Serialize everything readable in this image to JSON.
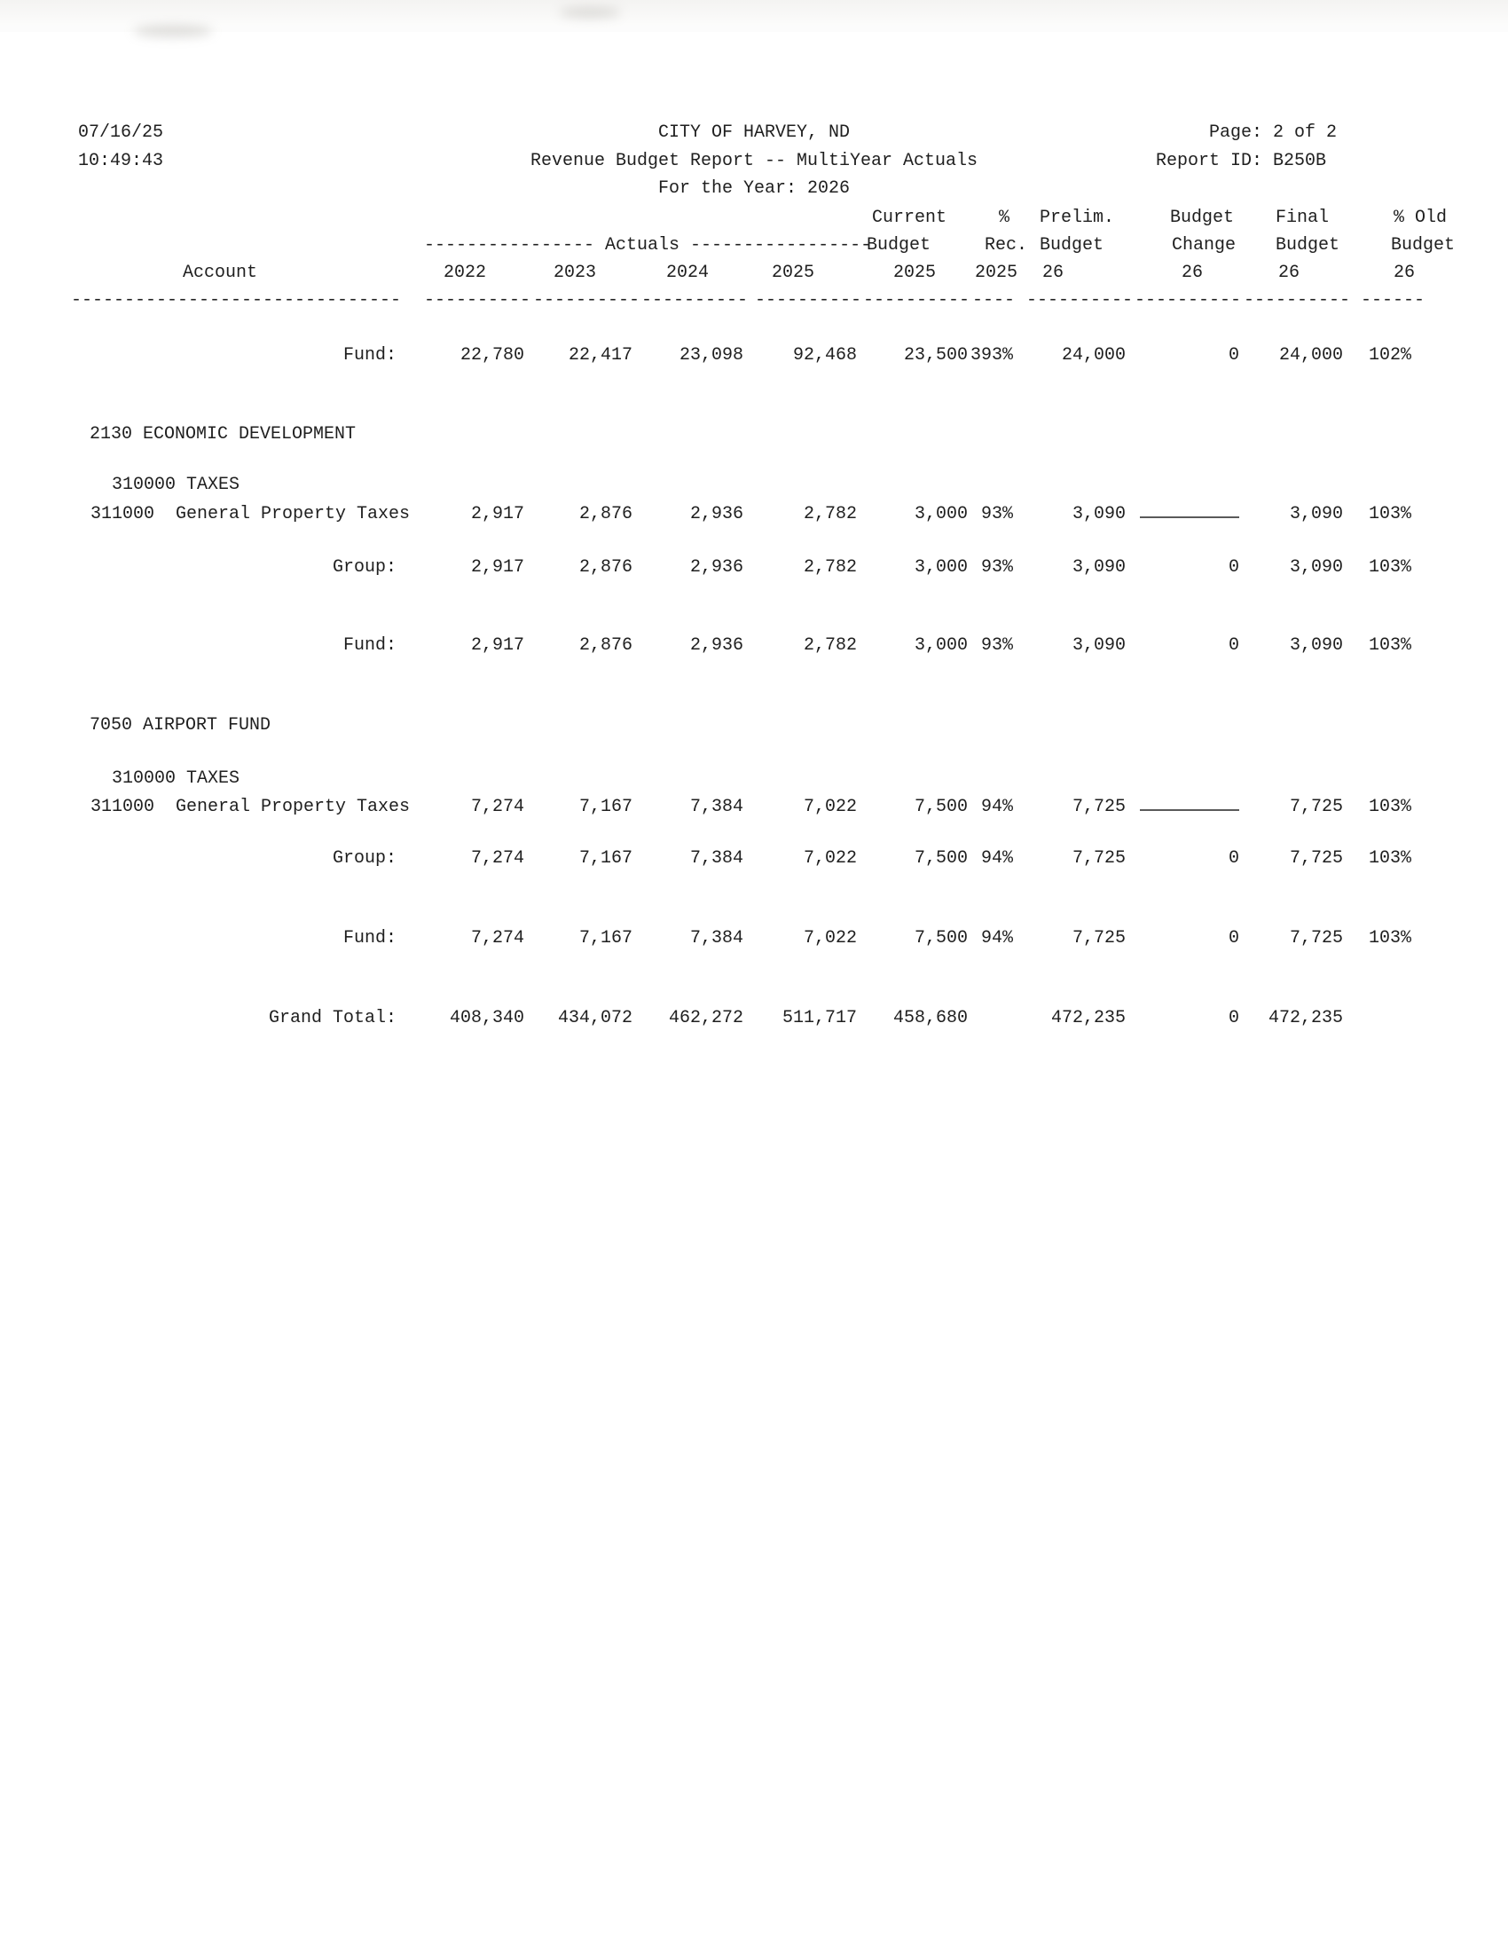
{
  "page_header": {
    "date": "07/16/25",
    "time": "10:49:43",
    "org": "CITY OF HARVEY, ND",
    "title": "Revenue Budget Report -- MultiYear Actuals",
    "year_line": "For the Year: 2026",
    "page": "Page: 2 of 2",
    "report_id": "Report ID: B250B"
  },
  "table": {
    "columns": {
      "row1": {
        "current": "Current",
        "rec": "%",
        "prelim": "Prelim.",
        "change": "Budget",
        "final": "Final",
        "old": "% Old"
      },
      "row2": {
        "actuals": "---------------- Actuals -----------------",
        "current": "Budget",
        "rec": "Rec.",
        "prelim": "Budget",
        "change": "Change",
        "final": "Budget",
        "old": "Budget"
      },
      "row3": {
        "account": "Account",
        "y2022": "2022",
        "y2023": "2023",
        "y2024": "2024",
        "y2025": "2025",
        "current": "2025",
        "rec": "2025",
        "prelim": "26",
        "change": "26",
        "final": "26",
        "old": "26"
      },
      "dashes": {
        "account": "-------------------------------",
        "col": "----------",
        "rec": "----",
        "old": "------"
      }
    },
    "rows": [
      {
        "type": "total",
        "label": "Fund:",
        "values": [
          "22,780",
          "22,417",
          "23,098",
          "92,468",
          "23,500",
          "393%",
          "24,000",
          "0",
          "24,000",
          "102%"
        ]
      },
      {
        "type": "section",
        "label": "2130 ECONOMIC DEVELOPMENT"
      },
      {
        "type": "subsection",
        "label": "310000 TAXES"
      },
      {
        "type": "account",
        "label": "311000  General Property Taxes",
        "blank_line": true,
        "values": [
          "2,917",
          "2,876",
          "2,936",
          "2,782",
          "3,000",
          "93%",
          "3,090",
          "",
          "3,090",
          "103%"
        ]
      },
      {
        "type": "total",
        "label": "Group:",
        "values": [
          "2,917",
          "2,876",
          "2,936",
          "2,782",
          "3,000",
          "93%",
          "3,090",
          "0",
          "3,090",
          "103%"
        ]
      },
      {
        "type": "total",
        "label": "Fund:",
        "values": [
          "2,917",
          "2,876",
          "2,936",
          "2,782",
          "3,000",
          "93%",
          "3,090",
          "0",
          "3,090",
          "103%"
        ]
      },
      {
        "type": "section",
        "label": "7050 AIRPORT FUND"
      },
      {
        "type": "subsection",
        "label": "310000 TAXES"
      },
      {
        "type": "account",
        "label": "311000  General Property Taxes",
        "blank_line": true,
        "values": [
          "7,274",
          "7,167",
          "7,384",
          "7,022",
          "7,500",
          "94%",
          "7,725",
          "",
          "7,725",
          "103%"
        ]
      },
      {
        "type": "total",
        "label": "Group:",
        "values": [
          "7,274",
          "7,167",
          "7,384",
          "7,022",
          "7,500",
          "94%",
          "7,725",
          "0",
          "7,725",
          "103%"
        ]
      },
      {
        "type": "total",
        "label": "Fund:",
        "values": [
          "7,274",
          "7,167",
          "7,384",
          "7,022",
          "7,500",
          "94%",
          "7,725",
          "0",
          "7,725",
          "103%"
        ]
      },
      {
        "type": "total",
        "label": "Grand Total:",
        "values": [
          "408,340",
          "434,072",
          "462,272",
          "511,717",
          "458,680",
          "",
          "472,235",
          "0",
          "472,235",
          ""
        ]
      }
    ]
  }
}
